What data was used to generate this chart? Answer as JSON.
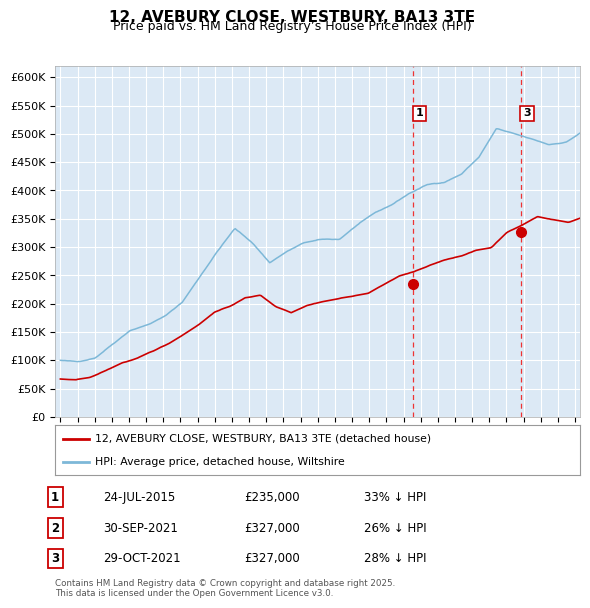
{
  "title": "12, AVEBURY CLOSE, WESTBURY, BA13 3TE",
  "subtitle": "Price paid vs. HM Land Registry’s House Price Index (HPI)",
  "background_color": "#ffffff",
  "plot_bg_color": "#dce9f5",
  "red_line_color": "#cc0000",
  "blue_line_color": "#7db8d8",
  "grid_color": "#ffffff",
  "legend_label_red": "12, AVEBURY CLOSE, WESTBURY, BA13 3TE (detached house)",
  "legend_label_blue": "HPI: Average price, detached house, Wiltshire",
  "annotation_text": "Contains HM Land Registry data © Crown copyright and database right 2025.\nThis data is licensed under the Open Government Licence v3.0.",
  "table_rows": [
    {
      "id": "1",
      "date": "24-JUL-2015",
      "price": "£235,000",
      "pct": "33% ↓ HPI"
    },
    {
      "id": "2",
      "date": "30-SEP-2021",
      "price": "£327,000",
      "pct": "26% ↓ HPI"
    },
    {
      "id": "3",
      "date": "29-OCT-2021",
      "price": "£327,000",
      "pct": "28% ↓ HPI"
    }
  ],
  "event1_year": 2015.56,
  "event1_price": 235000,
  "event3_year": 2021.83,
  "event3_price": 327000,
  "ylim": [
    0,
    620000
  ],
  "yticks": [
    0,
    50000,
    100000,
    150000,
    200000,
    250000,
    300000,
    350000,
    400000,
    450000,
    500000,
    550000,
    600000
  ],
  "year_start": 1995,
  "year_end": 2025
}
